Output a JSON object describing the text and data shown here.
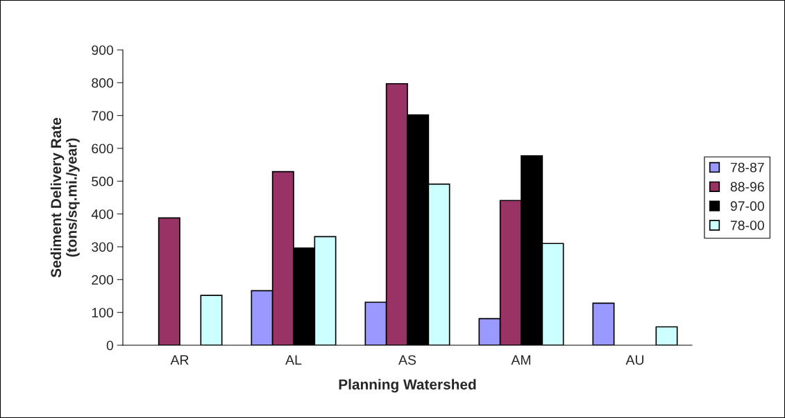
{
  "chart_data": {
    "type": "bar",
    "xlabel": "Planning Watershed",
    "ylabel": "Sediment Delivery Rate\n(tons/sq.mi./year)",
    "categories": [
      "AR",
      "AL",
      "AS",
      "AM",
      "AU"
    ],
    "series": [
      {
        "name": "78-87",
        "color": "#9999ff",
        "values": [
          null,
          166,
          131,
          81,
          128
        ]
      },
      {
        "name": "88-96",
        "color": "#993366",
        "values": [
          388,
          529,
          797,
          441,
          null
        ]
      },
      {
        "name": "97-00",
        "color": "#000000",
        "values": [
          null,
          296,
          702,
          577,
          null
        ]
      },
      {
        "name": "78-00",
        "color": "#ccffff",
        "values": [
          152,
          331,
          491,
          310,
          56
        ]
      }
    ],
    "ylim": [
      0,
      900
    ],
    "yticks": [
      0,
      100,
      200,
      300,
      400,
      500,
      600,
      700,
      800,
      900
    ],
    "grid": false,
    "legend": "right"
  }
}
